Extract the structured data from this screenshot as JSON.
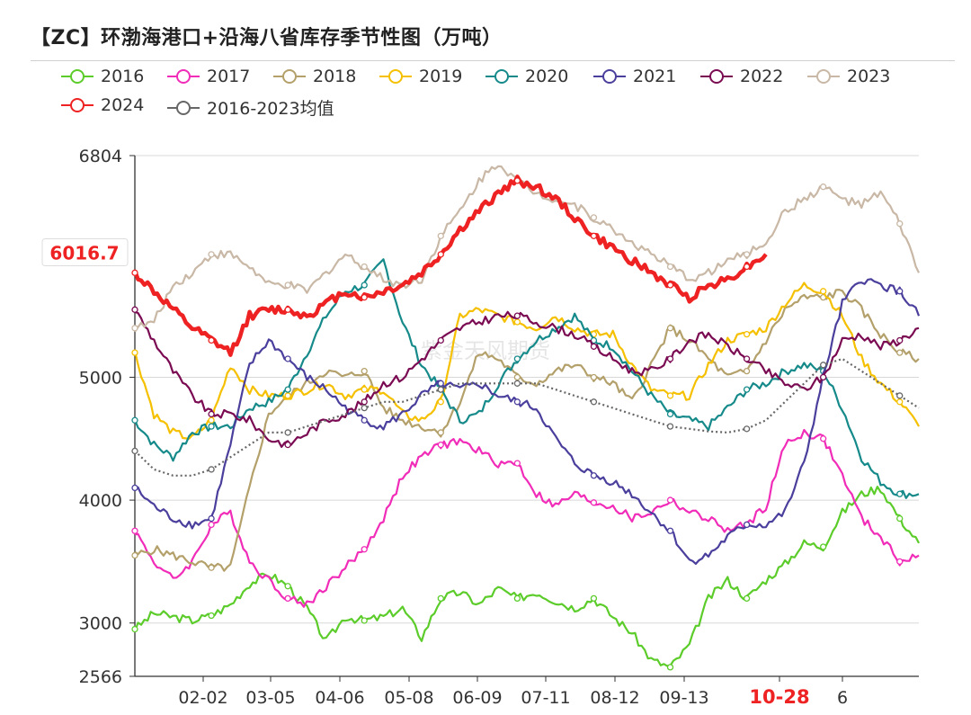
{
  "title": "【ZC】环渤海港口+沿海八省库存季节性图（万吨）",
  "watermark": "紫金天风期货",
  "chart_data": {
    "type": "line",
    "title": "【ZC】环渤海港口+沿海八省库存季节性图（万吨）",
    "ylim": [
      2566,
      6804
    ],
    "yticks": [
      2566,
      3000,
      4000,
      5000,
      6804
    ],
    "x_tick_labels": [
      "02-02",
      "03-05",
      "04-06",
      "05-08",
      "06-09",
      "07-11",
      "08-12",
      "09-13",
      "10-28",
      "6"
    ],
    "highlight_tick": "10-28",
    "current_value_label": "6016.7",
    "grid": true,
    "legend_position": "top-left",
    "series": [
      {
        "name": "2016",
        "color": "#5ccc2b",
        "values": [
          2950,
          3080,
          3050,
          3020,
          3060,
          3150,
          3320,
          3400,
          3300,
          3120,
          2850,
          3050,
          3020,
          3050,
          3120,
          2880,
          3200,
          3250,
          3150,
          3280,
          3200,
          3250,
          3180,
          3120,
          3200,
          3050,
          2920,
          2700,
          2640,
          2820,
          3200,
          3350,
          3200,
          3350,
          3480,
          3650,
          3620,
          3900,
          4050,
          4100,
          3850,
          3650
        ]
      },
      {
        "name": "2017",
        "color": "#f02cb8",
        "values": [
          3750,
          3500,
          3350,
          3500,
          3800,
          3900,
          3500,
          3350,
          3200,
          3150,
          3300,
          3450,
          3600,
          3850,
          4200,
          4350,
          4450,
          4480,
          4400,
          4300,
          4300,
          4050,
          3950,
          4050,
          3980,
          3950,
          3850,
          3900,
          4000,
          3900,
          3850,
          3750,
          3800,
          3950,
          4450,
          4550,
          4500,
          4200,
          3850,
          3700,
          3500,
          3550
        ]
      },
      {
        "name": "2018",
        "color": "#b3a06a",
        "values": [
          3550,
          3600,
          3550,
          3500,
          3450,
          3450,
          4100,
          4700,
          4850,
          4950,
          5050,
          5000,
          5050,
          4750,
          4650,
          4600,
          4550,
          4800,
          5200,
          5150,
          5000,
          4950,
          5050,
          5100,
          5000,
          4950,
          4800,
          5100,
          5400,
          5300,
          5150,
          5000,
          5050,
          5300,
          5550,
          5650,
          5650,
          5700,
          5550,
          5350,
          5200,
          5150
        ]
      },
      {
        "name": "2019",
        "color": "#f5c000",
        "values": [
          5200,
          4700,
          4550,
          4500,
          4650,
          5100,
          4900,
          4850,
          4850,
          4900,
          4950,
          4850,
          4900,
          4900,
          4700,
          4650,
          4800,
          5500,
          5550,
          5500,
          5450,
          5400,
          5500,
          5400,
          5350,
          5350,
          5100,
          4900,
          4850,
          4850,
          5100,
          5300,
          5350,
          5400,
          5600,
          5750,
          5700,
          5500,
          5150,
          4950,
          4800,
          4600
        ]
      },
      {
        "name": "2020",
        "color": "#168a8a",
        "values": [
          4650,
          4450,
          4350,
          4550,
          4600,
          4600,
          4750,
          4800,
          4900,
          5200,
          5500,
          5700,
          5750,
          5950,
          5450,
          5100,
          4900,
          4650,
          4700,
          4950,
          5150,
          5300,
          5400,
          5500,
          5300,
          5250,
          5050,
          4850,
          4700,
          4650,
          4600,
          4750,
          4900,
          4950,
          5050,
          5100,
          5050,
          4750,
          4350,
          4150,
          4050,
          4050
        ]
      },
      {
        "name": "2021",
        "color": "#4a3f9c",
        "values": [
          4100,
          3950,
          3850,
          3800,
          3850,
          4450,
          5100,
          5300,
          5150,
          5000,
          4900,
          4750,
          4650,
          4600,
          4700,
          4850,
          4950,
          4900,
          4950,
          4850,
          4800,
          4750,
          4500,
          4300,
          4200,
          4150,
          4050,
          3900,
          3750,
          3500,
          3550,
          3700,
          3800,
          3800,
          3900,
          4300,
          5000,
          5600,
          5800,
          5750,
          5700,
          5500
        ]
      },
      {
        "name": "2022",
        "color": "#7a0a52",
        "values": [
          5550,
          5300,
          5050,
          4850,
          4700,
          4700,
          4650,
          4500,
          4450,
          4550,
          4650,
          4700,
          4800,
          4950,
          5000,
          5150,
          5300,
          5400,
          5450,
          5500,
          5500,
          5450,
          5400,
          5350,
          5250,
          5150,
          5050,
          5050,
          5150,
          5300,
          5350,
          5250,
          5150,
          5050,
          4950,
          4900,
          5000,
          5300,
          5350,
          5250,
          5300,
          5400
        ]
      },
      {
        "name": "2023",
        "color": "#c9b8a6",
        "values": [
          5400,
          5450,
          5750,
          5850,
          6000,
          6000,
          5900,
          5750,
          5750,
          5700,
          5850,
          6000,
          5900,
          5800,
          5750,
          5800,
          6150,
          6350,
          6600,
          6750,
          6600,
          6500,
          6450,
          6400,
          6300,
          6200,
          6100,
          6000,
          5900,
          5800,
          5850,
          5950,
          6000,
          6100,
          6350,
          6450,
          6550,
          6450,
          6400,
          6500,
          6250,
          5850
        ]
      },
      {
        "name": "2024",
        "color": "#ee2222",
        "values": [
          5850,
          5700,
          5550,
          5400,
          5300,
          5200,
          5500,
          5550,
          5550,
          5500,
          5600,
          5700,
          5650,
          5700,
          5750,
          5850,
          6000,
          6200,
          6350,
          6500,
          6600,
          6550,
          6450,
          6300,
          6150,
          6050,
          5950,
          5850,
          5750,
          5650,
          5750,
          5800,
          5900,
          6000
        ]
      },
      {
        "name": "2016-2023均值",
        "color": "#666666",
        "values": [
          4400,
          4250,
          4200,
          4200,
          4250,
          4350,
          4450,
          4550,
          4550,
          4600,
          4650,
          4700,
          4750,
          4800,
          4800,
          4850,
          4900,
          4950,
          4950,
          4950,
          4950,
          4950,
          4900,
          4850,
          4800,
          4750,
          4700,
          4650,
          4600,
          4580,
          4560,
          4550,
          4580,
          4650,
          4800,
          4950,
          5100,
          5150,
          5050,
          4950,
          4850,
          4750
        ]
      }
    ]
  }
}
